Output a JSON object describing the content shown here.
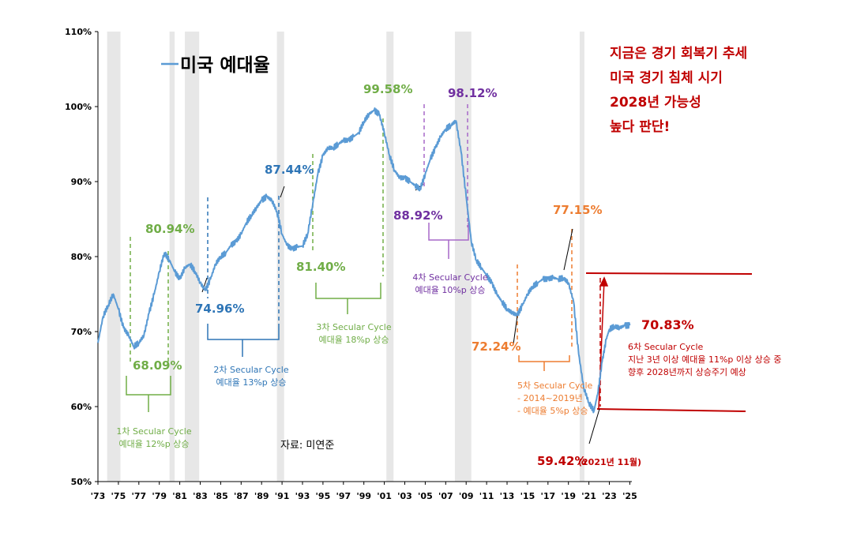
{
  "chart_data": {
    "type": "line",
    "legend": "미국 예대율",
    "source": "자료: 미연준",
    "ylim": [
      50,
      110
    ],
    "yticks": [
      "50%",
      "60%",
      "70%",
      "80%",
      "90%",
      "100%",
      "110%"
    ],
    "xticks": [
      "'73",
      "'75",
      "'77",
      "'79",
      "'81",
      "'83",
      "'85",
      "'87",
      "'89",
      "'91",
      "'93",
      "'95",
      "'97",
      "'99",
      "'01",
      "'03",
      "'05",
      "'07",
      "'09",
      "'11",
      "'13",
      "'15",
      "'17",
      "'19",
      "'21",
      "'23",
      "'25"
    ],
    "recessions": [
      [
        1973.9,
        1975.2
      ],
      [
        1980.0,
        1980.5
      ],
      [
        1981.5,
        1982.9
      ],
      [
        1990.5,
        1991.2
      ],
      [
        2001.2,
        2001.9
      ],
      [
        2007.9,
        2009.5
      ],
      [
        2020.1,
        2020.4
      ]
    ],
    "series": [
      {
        "color": "#5b9bd5",
        "x": [
          1973.0,
          1973.5,
          1974.0,
          1974.5,
          1975.0,
          1975.5,
          1976.0,
          1976.5,
          1977.0,
          1977.5,
          1978.0,
          1978.5,
          1979.0,
          1979.5,
          1980.0,
          1980.5,
          1981.0,
          1981.5,
          1982.0,
          1982.5,
          1983.0,
          1983.5,
          1984.0,
          1984.5,
          1985.0,
          1985.5,
          1986.0,
          1986.5,
          1987.0,
          1987.5,
          1988.0,
          1988.5,
          1989.0,
          1989.5,
          1990.0,
          1990.5,
          1991.0,
          1991.5,
          1992.0,
          1992.5,
          1993.0,
          1993.5,
          1994.0,
          1994.5,
          1995.0,
          1995.5,
          1996.0,
          1996.5,
          1997.0,
          1997.5,
          1998.0,
          1998.5,
          1999.0,
          1999.5,
          2000.0,
          2000.5,
          2001.0,
          2001.5,
          2002.0,
          2002.5,
          2003.0,
          2003.5,
          2004.0,
          2004.5,
          2005.0,
          2005.5,
          2006.0,
          2006.5,
          2007.0,
          2007.5,
          2008.0,
          2008.5,
          2009.0,
          2009.5,
          2010.0,
          2010.5,
          2011.0,
          2011.5,
          2012.0,
          2012.5,
          2013.0,
          2013.5,
          2014.0,
          2014.5,
          2015.0,
          2015.5,
          2016.0,
          2016.5,
          2017.0,
          2017.5,
          2018.0,
          2018.5,
          2019.0,
          2019.5,
          2020.0,
          2020.5,
          2021.0,
          2021.5,
          2021.9,
          2022.3,
          2022.7,
          2023.0,
          2023.5,
          2024.0,
          2024.5,
          2025.0
        ],
        "values": [
          68.5,
          72.0,
          73.5,
          75.0,
          73.0,
          70.5,
          69.5,
          68.0,
          68.5,
          69.5,
          72.5,
          75.0,
          78.0,
          80.5,
          79.5,
          78.0,
          77.0,
          78.5,
          79.0,
          78.0,
          76.5,
          75.5,
          77.0,
          79.0,
          80.0,
          80.5,
          81.5,
          82.0,
          83.0,
          84.5,
          85.5,
          86.5,
          87.5,
          88.0,
          87.5,
          86.0,
          83.0,
          81.5,
          81.0,
          81.3,
          81.4,
          83.0,
          87.0,
          91.0,
          93.5,
          94.5,
          94.5,
          95.0,
          95.5,
          95.5,
          96.0,
          96.5,
          98.0,
          99.0,
          99.5,
          99.0,
          96.5,
          93.5,
          91.5,
          90.5,
          90.5,
          90.0,
          89.5,
          89.0,
          91.0,
          93.0,
          94.5,
          96.0,
          97.0,
          97.5,
          98.1,
          94.0,
          88.0,
          82.0,
          79.5,
          78.5,
          77.5,
          76.5,
          75.0,
          74.0,
          73.0,
          72.5,
          72.2,
          73.5,
          75.0,
          76.0,
          76.5,
          77.0,
          77.0,
          77.2,
          77.0,
          77.15,
          76.5,
          74.0,
          67.0,
          62.5,
          60.5,
          59.42,
          62.0,
          66.0,
          69.0,
          70.3,
          70.7,
          70.5,
          70.8,
          70.83
        ]
      }
    ],
    "annotations": {
      "c1": {
        "low": "68.09%",
        "high": "80.94%",
        "title": "1차 Secular Cycle",
        "sub": "예대율 12%p 상승"
      },
      "c2": {
        "low": "74.96%",
        "high": "87.44%",
        "title": "2차 Secular Cycle",
        "sub": "예대율 13%p 상승"
      },
      "c3": {
        "low": "81.40%",
        "high": "99.58%",
        "title": "3차 Secular Cycle",
        "sub": "예대율 18%p 상승"
      },
      "c4": {
        "low": "88.92%",
        "high": "98.12%",
        "title": "4차 Secular Cycle",
        "sub": "예대율 10%p 상승"
      },
      "c5": {
        "low": "72.24%",
        "high": "77.15%",
        "title": "5차 Secular Cycle",
        "sub1": "- 2014~2019년",
        "sub2": "- 예대율 5%p 상승"
      },
      "c6": {
        "low": "59.42%",
        "low_note": "(2021년 11월)",
        "high": "70.83%",
        "title": "6차 Secular Cycle",
        "sub1": "지난 3년 이상 예대율 11%p 이상 상승 중",
        "sub2": "향후 2028년까지 상승주기 예상"
      },
      "headline": [
        "지금은 경기 회복기 추세",
        "미국 경기 침체 시기",
        "2028년 가능성",
        "높다 판단!"
      ]
    }
  },
  "colors": {
    "green": "#70ad47",
    "blue": "#2e75b6",
    "purple": "#7030a0",
    "orange": "#ed7d31",
    "red": "#c00000",
    "line": "#5b9bd5",
    "recession": "#e7e7e7"
  }
}
